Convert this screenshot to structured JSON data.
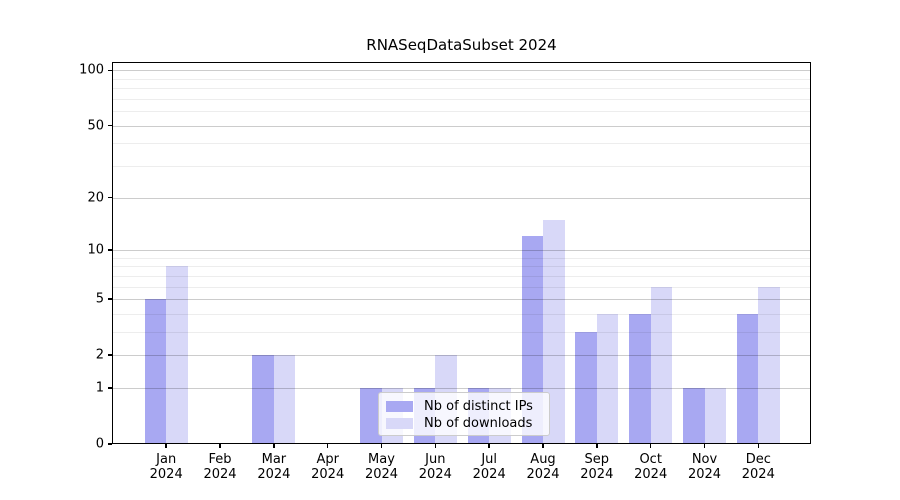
{
  "title": "RNASeqDataSubset 2024",
  "chart_data": {
    "type": "bar",
    "title": "RNASeqDataSubset 2024",
    "categories": [
      "Jan",
      "Feb",
      "Mar",
      "Apr",
      "May",
      "Jun",
      "Jul",
      "Aug",
      "Sep",
      "Oct",
      "Nov",
      "Dec"
    ],
    "year_label": "2024",
    "series": [
      {
        "name": "Nb of distinct IPs",
        "color": "#a8a8f2",
        "values": [
          5,
          0,
          2,
          0,
          1,
          1,
          1,
          12,
          3,
          4,
          1,
          4
        ]
      },
      {
        "name": "Nb of downloads",
        "color": "#d8d8f8",
        "values": [
          8,
          0,
          2,
          0,
          1,
          2,
          1,
          15,
          4,
          6,
          1,
          6
        ]
      }
    ],
    "yscale": "log1p",
    "ylim": [
      0,
      111
    ],
    "y_ticks": [
      0,
      1,
      2,
      5,
      10,
      20,
      50,
      100
    ],
    "y_minor_ticks": [
      3,
      4,
      6,
      7,
      8,
      9,
      30,
      40,
      60,
      70,
      80,
      90
    ],
    "grid": true,
    "legend_position": "lower-center-inside"
  }
}
